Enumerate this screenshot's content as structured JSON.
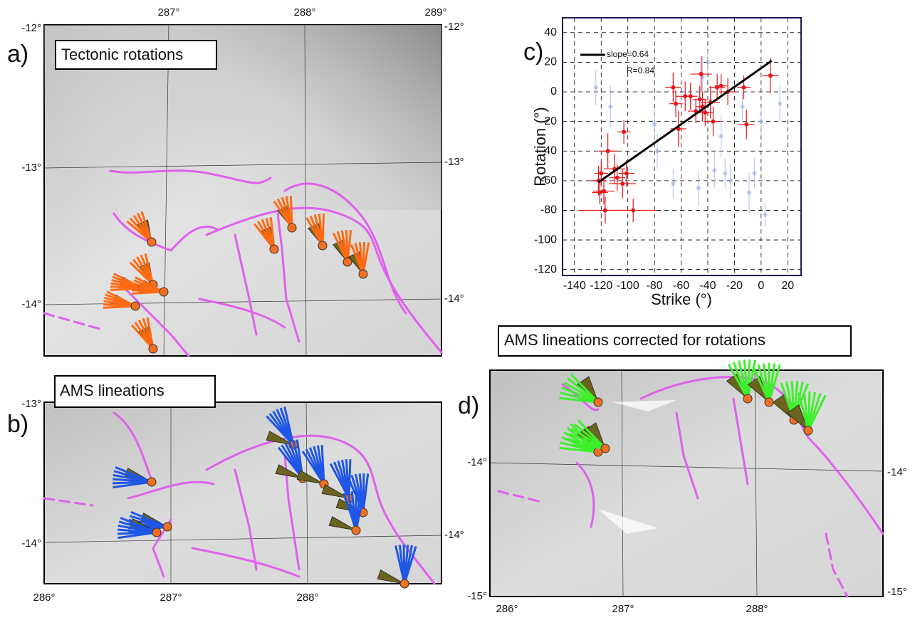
{
  "maps": [
    {
      "label": "a)",
      "title": "Tectonic rotations",
      "top_labels": [
        "287°",
        "288°",
        "289°"
      ],
      "left_labels": [
        "-12°",
        "-13°",
        "-14°"
      ],
      "right_labels": [
        "-12°",
        "-13°",
        "-14°"
      ]
    },
    {
      "label": "b)",
      "title": "AMS lineations",
      "left_labels": [
        "-13°",
        "-14°"
      ],
      "right_labels": [
        "-14°"
      ],
      "bottom_labels": [
        "286°",
        "287°",
        "288°"
      ]
    },
    {
      "label": "d)",
      "title": "AMS lineations corrected for rotations",
      "left_labels": [
        "-14°",
        "-15°"
      ],
      "right_labels": [
        "-14°",
        "-15°"
      ],
      "bottom_labels": [
        "286°",
        "287°",
        "288°"
      ]
    }
  ],
  "chart_data": {
    "type": "scatter",
    "label": "c)",
    "xlabel": "Strike (°)",
    "ylabel": "Rotation (°)",
    "xlim": [
      -149,
      30
    ],
    "ylim": [
      -124,
      50
    ],
    "xticks": [
      -140,
      -120,
      -100,
      -80,
      -60,
      -40,
      -20,
      0,
      20
    ],
    "yticks": [
      40,
      20,
      0,
      -20,
      -40,
      -60,
      -80,
      -100,
      -120
    ],
    "grid": true,
    "series": [
      {
        "color": "#e8141a",
        "x": [
          -122,
          -120,
          -118,
          -121,
          -115,
          -117,
          -110,
          -108,
          -103,
          -104,
          -101,
          -96,
          -66,
          -64,
          -62,
          -57,
          -53,
          -49,
          -45,
          -44,
          -42,
          -38,
          -36,
          -33,
          -30,
          -25,
          -13,
          -11,
          7,
          -46
        ],
        "y": [
          -60,
          -55,
          -67,
          -68,
          -40,
          -80,
          -52,
          -58,
          -27,
          -62,
          -55,
          -80,
          3,
          -8,
          -25,
          -3,
          -3,
          -13,
          12,
          -10,
          -14,
          -7,
          -20,
          3,
          4,
          0,
          3,
          -22,
          11,
          -5
        ],
        "xerr": [
          6,
          5,
          8,
          6,
          7,
          20,
          8,
          6,
          5,
          10,
          6,
          18,
          6,
          5,
          6,
          7,
          5,
          6,
          8,
          5,
          6,
          7,
          5,
          6,
          5,
          6,
          5,
          6,
          6,
          5
        ],
        "yerr": [
          10,
          8,
          9,
          8,
          12,
          9,
          10,
          9,
          8,
          10,
          9,
          8,
          10,
          9,
          12,
          10,
          9,
          8,
          12,
          10,
          9,
          11,
          10,
          9,
          8,
          9,
          8,
          10,
          12,
          9
        ]
      },
      {
        "color": "#9fb3e6",
        "x": [
          -124,
          -113,
          -80,
          -78,
          -66,
          -44,
          -40,
          -35,
          -27,
          -23,
          -14,
          -9,
          -5,
          0,
          3,
          14,
          -47,
          -30
        ],
        "y": [
          3,
          -10,
          -22,
          -40,
          -62,
          10,
          20,
          -53,
          -55,
          -60,
          -10,
          -68,
          -55,
          -20,
          -83,
          -8,
          -65,
          -30
        ],
        "yerr": [
          12,
          14,
          10,
          12,
          10,
          14,
          8,
          12,
          10,
          12,
          10,
          14,
          10,
          10,
          8,
          12,
          12,
          14
        ]
      }
    ],
    "fit": {
      "label": "slope=0.64",
      "annotation": "R=0.84",
      "color": "#000000",
      "x": [
        -122,
        8
      ],
      "y": [
        -61,
        21
      ]
    }
  }
}
